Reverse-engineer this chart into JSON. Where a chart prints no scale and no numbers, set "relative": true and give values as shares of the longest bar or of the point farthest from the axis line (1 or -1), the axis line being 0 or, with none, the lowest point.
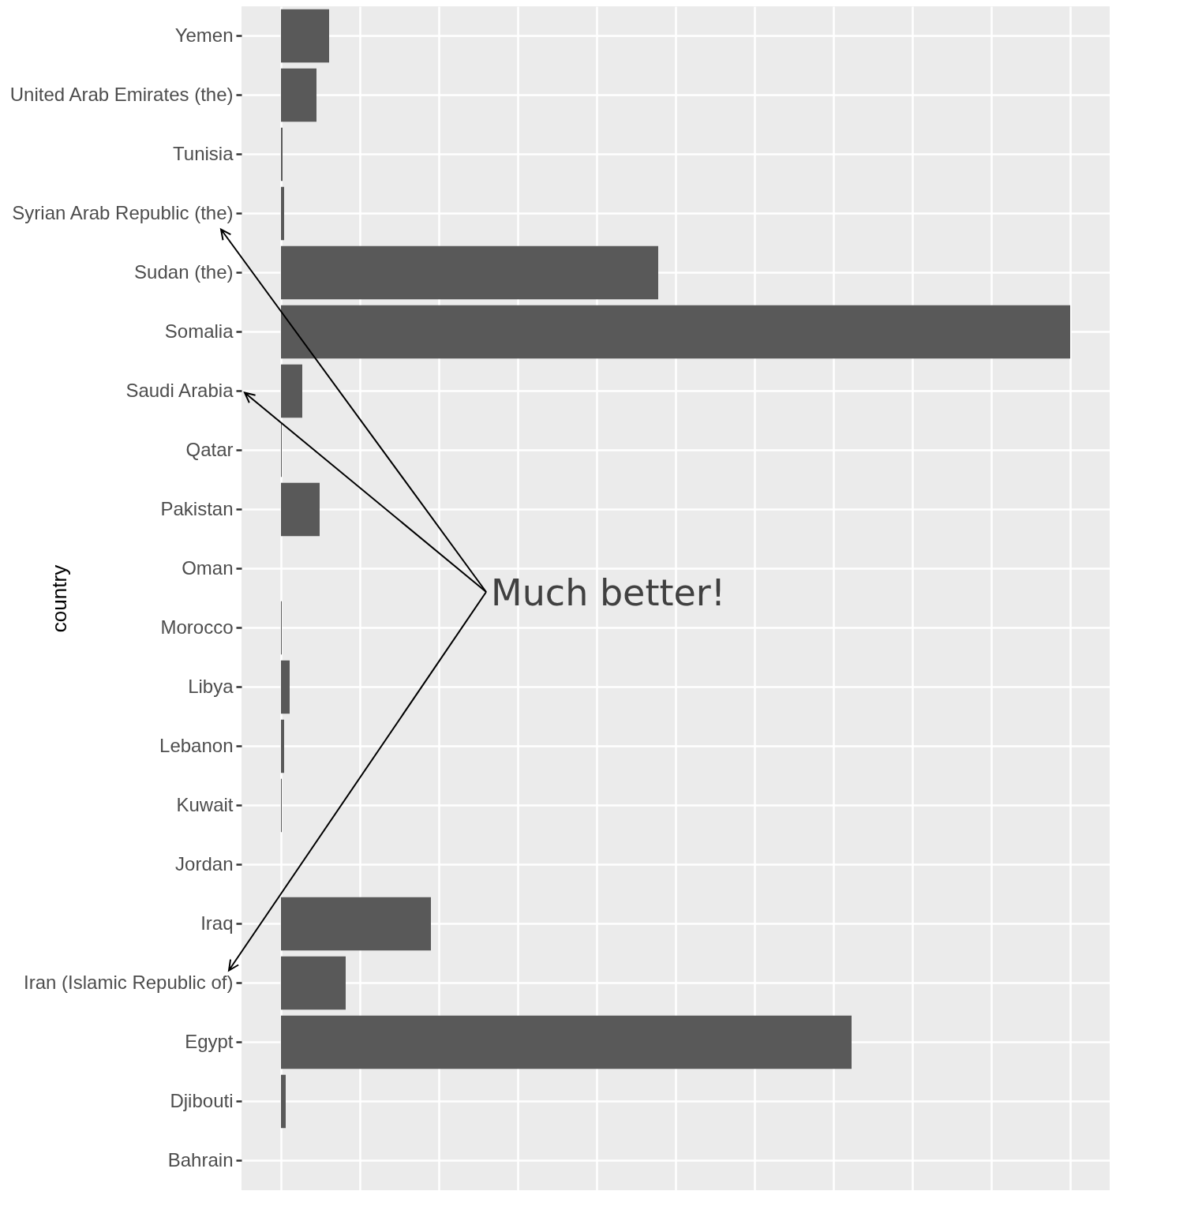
{
  "chart_data": {
    "type": "bar",
    "orientation": "horizontal",
    "relative": true,
    "ylabel": "country",
    "categories": [
      "Yemen",
      "United Arab Emirates (the)",
      "Tunisia",
      "Syrian Arab Republic (the)",
      "Sudan (the)",
      "Somalia",
      "Saudi Arabia",
      "Qatar",
      "Pakistan",
      "Oman",
      "Morocco",
      "Libya",
      "Lebanon",
      "Kuwait",
      "Jordan",
      "Iraq",
      "Iran (Islamic Republic of)",
      "Egypt",
      "Djibouti",
      "Bahrain"
    ],
    "values": [
      0.061,
      0.045,
      0.002,
      0.004,
      0.478,
      1,
      0.027,
      0.001,
      0.049,
      0,
      0.001,
      0.011,
      0.004,
      0.001,
      0,
      0.19,
      0.082,
      0.723,
      0.006,
      null
    ],
    "color": "#595959",
    "grid": true,
    "annotations": [
      "Much better!"
    ]
  }
}
